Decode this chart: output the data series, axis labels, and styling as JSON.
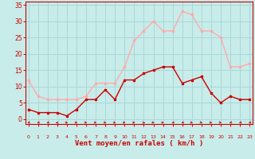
{
  "x": [
    0,
    1,
    2,
    3,
    4,
    5,
    6,
    7,
    8,
    9,
    10,
    11,
    12,
    13,
    14,
    15,
    16,
    17,
    18,
    19,
    20,
    21,
    22,
    23
  ],
  "wind_avg": [
    3,
    2,
    2,
    2,
    1,
    3,
    6,
    6,
    9,
    6,
    12,
    12,
    14,
    15,
    16,
    16,
    11,
    12,
    13,
    8,
    5,
    7,
    6,
    6
  ],
  "wind_gust": [
    12,
    7,
    6,
    6,
    6,
    6,
    7,
    11,
    11,
    11,
    16,
    24,
    27,
    30,
    27,
    27,
    33,
    32,
    27,
    27,
    25,
    16,
    16,
    17
  ],
  "avg_color": "#cc0000",
  "gust_color": "#ffaaaa",
  "bg_color": "#c8ecea",
  "grid_color": "#a8d8d8",
  "ylabel_ticks": [
    0,
    5,
    10,
    15,
    20,
    25,
    30,
    35
  ],
  "ylim": [
    -1.5,
    36
  ],
  "xlim": [
    -0.3,
    23.3
  ],
  "xlabel": "Vent moyen/en rafales ( km/h )",
  "xlabel_color": "#cc0000",
  "tick_color": "#cc0000",
  "spine_color": "#cc0000",
  "arrow_angles": [
    315,
    315,
    315,
    270,
    45,
    45,
    45,
    45,
    45,
    45,
    45,
    45,
    67,
    45,
    45,
    315,
    315,
    45,
    45,
    45,
    45,
    315,
    315,
    315
  ]
}
